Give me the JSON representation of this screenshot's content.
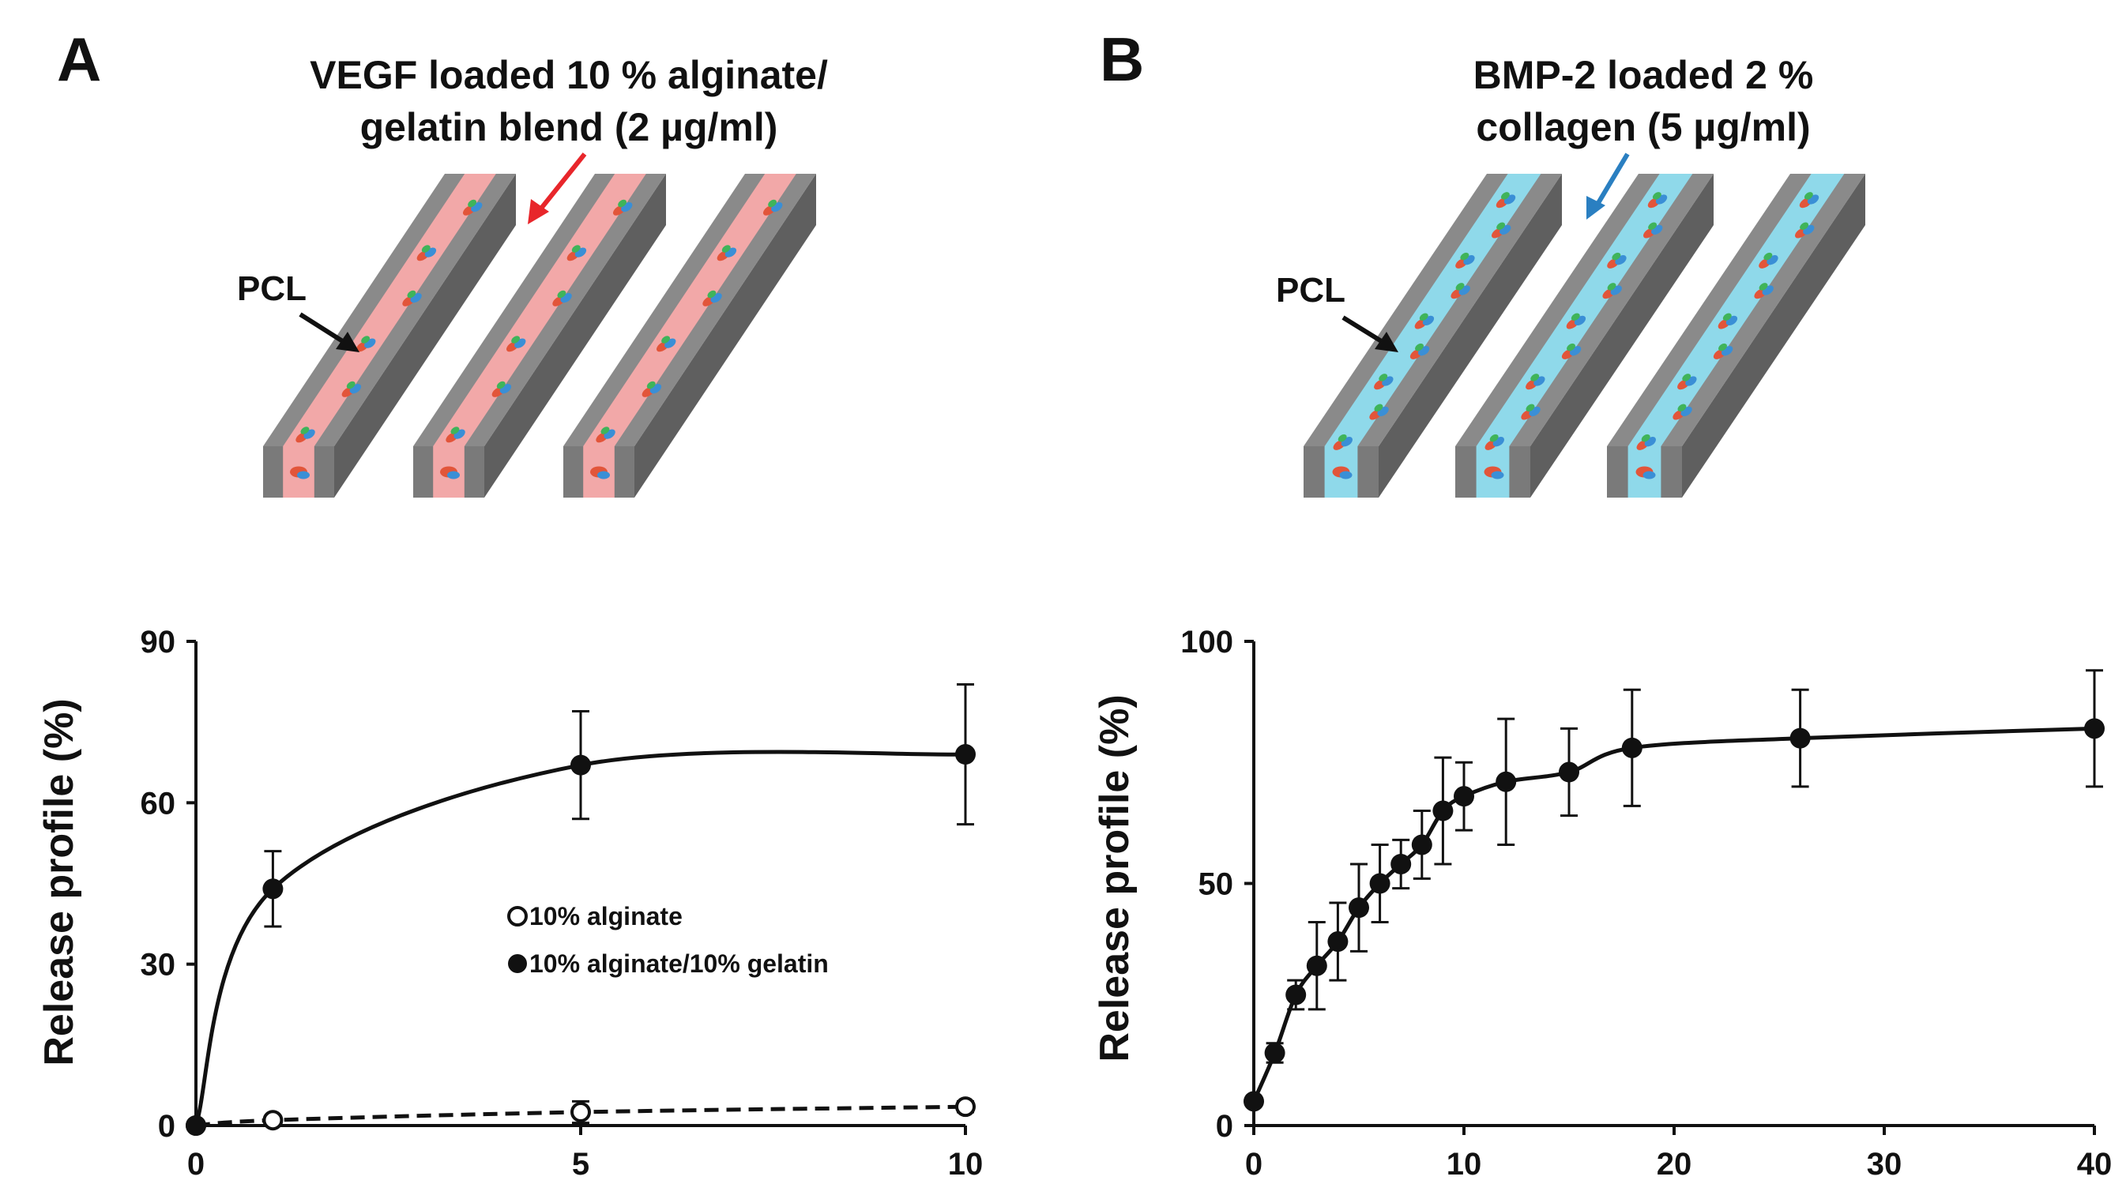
{
  "panels": [
    {
      "letter": "A",
      "caption": [
        "VEGF loaded 10 % alginate/",
        "gelatin blend (2 µg/ml)"
      ],
      "pcl_label": "PCL",
      "fill_color": "#f2a8a8",
      "arrow_color": "#e8262b",
      "icon": "vegf-molecule-icon"
    },
    {
      "letter": "B",
      "caption": [
        "BMP-2 loaded 2 %",
        "collagen (5 µg/ml)"
      ],
      "pcl_label": "PCL",
      "fill_color": "#8fd9ea",
      "arrow_color": "#2a7fc1",
      "icon": "bmp2-molecule-icon"
    }
  ],
  "chart_data": [
    {
      "type": "line",
      "title": "",
      "xlabel": "",
      "ylabel": "Release profile (%)",
      "xlim": [
        0,
        10
      ],
      "ylim": [
        0,
        90
      ],
      "xticks": [
        0,
        5,
        10
      ],
      "yticks": [
        0,
        30,
        60,
        90
      ],
      "legend_position": "center-right",
      "series": [
        {
          "name": "10% alginate",
          "marker": "open-circle",
          "line": "dashed",
          "x": [
            0,
            1,
            5,
            10
          ],
          "y": [
            0,
            1,
            2.5,
            3.5
          ],
          "err": [
            0,
            0.5,
            2,
            1
          ]
        },
        {
          "name": "10% alginate/10% gelatin",
          "marker": "filled-circle",
          "line": "solid",
          "x": [
            0,
            1,
            5,
            10
          ],
          "y": [
            0,
            44,
            67,
            69
          ],
          "err": [
            0,
            7,
            10,
            13
          ]
        }
      ]
    },
    {
      "type": "line",
      "title": "",
      "xlabel": "",
      "ylabel": "Release profile (%)",
      "xlim": [
        0,
        40
      ],
      "ylim": [
        0,
        100
      ],
      "xticks": [
        0,
        10,
        20,
        30,
        40
      ],
      "yticks": [
        0,
        50,
        100
      ],
      "series": [
        {
          "marker": "filled-circle",
          "line": "solid",
          "x": [
            0,
            1,
            2,
            3,
            4,
            5,
            6,
            7,
            8,
            9,
            10,
            12,
            15,
            18,
            26,
            40
          ],
          "y": [
            5,
            15,
            27,
            33,
            38,
            45,
            50,
            54,
            58,
            65,
            68,
            71,
            73,
            78,
            80,
            82
          ],
          "err": [
            0,
            2,
            3,
            9,
            8,
            9,
            8,
            5,
            7,
            11,
            7,
            13,
            9,
            12,
            10,
            12
          ]
        }
      ]
    }
  ]
}
